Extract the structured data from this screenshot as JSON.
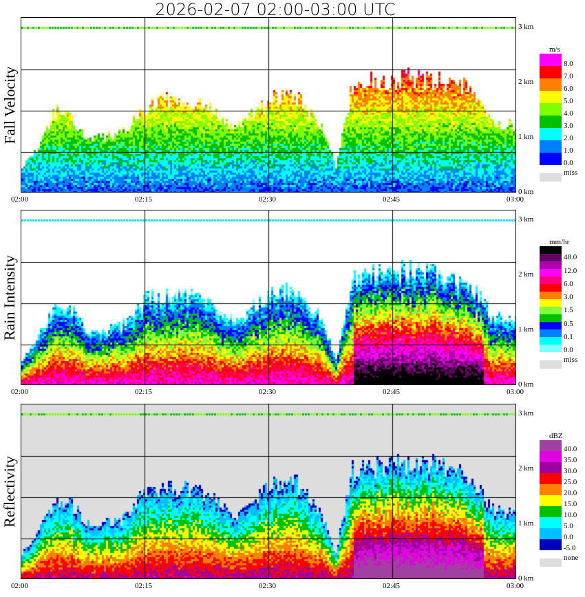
{
  "title": "2026-02-07  02:00-03:00 UTC",
  "x_ticks": [
    "02:00",
    "02:15",
    "02:30",
    "02:45",
    "03:00"
  ],
  "km_ticks": [
    "0 km",
    "1 km",
    "2 km",
    "3 km"
  ],
  "chart_data": [
    {
      "type": "heatmap",
      "title": "Fall Velocity",
      "unit": "m/s",
      "legend": {
        "labels": [
          "8.0",
          "7.0",
          "6.0",
          "5.0",
          "4.0",
          "3.0",
          "2.0",
          "1.0",
          "0.0"
        ],
        "colors": [
          "#ff00ff",
          "#ff0000",
          "#ff8000",
          "#ffff00",
          "#80ff00",
          "#00c000",
          "#00ffff",
          "#0080ff",
          "#0000ff"
        ],
        "missing_label": "miss",
        "missing_color": "#dddddd"
      },
      "background": "#ffffff"
    },
    {
      "type": "heatmap",
      "title": "Rain Intensity",
      "unit": "mm/hr",
      "legend": {
        "labels": [
          "48.0",
          "12.0",
          "6.0",
          "3.0",
          "1.5",
          "0.5",
          "0.1",
          "0.0"
        ],
        "colors": [
          "#000000",
          "#600060",
          "#b000b0",
          "#ff00ff",
          "#ff0080",
          "#ff0000",
          "#ff8000",
          "#ffff00",
          "#80ff40",
          "#00c000",
          "#0000ff",
          "#0080ff",
          "#00ffff",
          "#80ffff"
        ],
        "missing_label": "miss",
        "missing_color": "#dddddd"
      },
      "background": "#ffffff"
    },
    {
      "type": "heatmap",
      "title": "Reflectivity",
      "unit": "dBZ",
      "legend": {
        "labels": [
          "40.0",
          "35.0",
          "30.0",
          "25.0",
          "20.0",
          "15.0",
          "10.0",
          "5.0",
          "0.0",
          "-5.0"
        ],
        "colors": [
          "#a040a0",
          "#e000e0",
          "#a000a0",
          "#ff0000",
          "#ff8000",
          "#ffff00",
          "#00c000",
          "#00ffff",
          "#00c0ff",
          "#0000c0"
        ],
        "missing_label": "none",
        "missing_color": "#dddddd"
      },
      "background": "#dddddd"
    }
  ],
  "x_range_minutes": [
    0,
    60
  ],
  "y_range_km": [
    0,
    3.2
  ],
  "echo_top_profile": {
    "minutes": [
      0,
      2,
      4,
      6,
      8,
      12,
      15,
      18,
      22,
      26,
      30,
      33,
      36,
      38,
      40,
      45,
      50,
      54,
      57,
      60
    ],
    "top_km": [
      0.5,
      0.9,
      1.5,
      1.4,
      1.0,
      1.1,
      1.6,
      1.7,
      1.6,
      1.2,
      1.7,
      1.8,
      1.3,
      0.5,
      2.0,
      2.1,
      2.1,
      1.9,
      1.3,
      1.2
    ]
  }
}
